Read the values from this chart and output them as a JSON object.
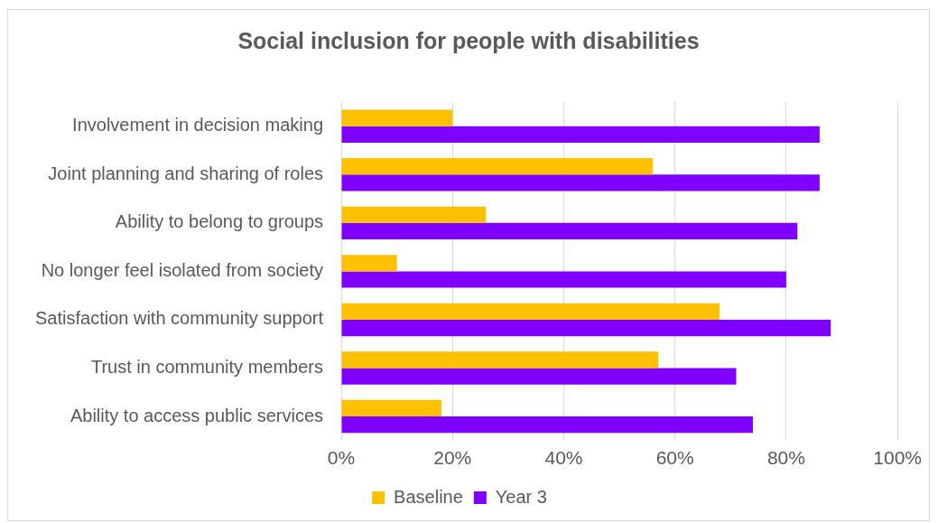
{
  "chart_data": {
    "type": "bar",
    "orientation": "horizontal",
    "title": "Social inclusion for people with disabilities",
    "categories": [
      "Involvement in decision making",
      "Joint planning and sharing of roles",
      "Ability to belong to groups",
      "No longer feel isolated from society",
      "Satisfaction with community support",
      "Trust in community members",
      "Ability to access public services"
    ],
    "series": [
      {
        "name": "Baseline",
        "color": "#ffc000",
        "values": [
          20,
          56,
          26,
          10,
          68,
          57,
          18
        ]
      },
      {
        "name": "Year 3",
        "color": "#8000ff",
        "values": [
          86,
          86,
          82,
          80,
          88,
          71,
          74
        ]
      }
    ],
    "xlim": [
      0,
      100
    ],
    "xticks": [
      {
        "value": 0,
        "label": "0%"
      },
      {
        "value": 20,
        "label": "20%"
      },
      {
        "value": 40,
        "label": "40%"
      },
      {
        "value": 60,
        "label": "60%"
      },
      {
        "value": 80,
        "label": "80%"
      },
      {
        "value": 100,
        "label": "100%"
      }
    ],
    "grid": "x",
    "legend": "bottom"
  }
}
